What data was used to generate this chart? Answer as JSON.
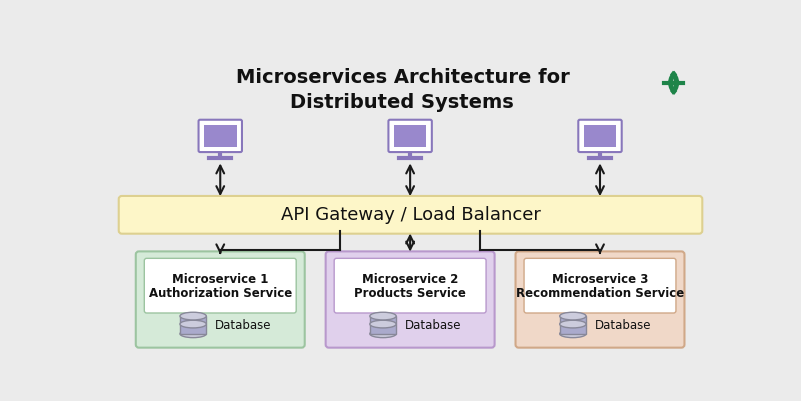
{
  "title_line1": "Microservices Architecture for",
  "title_line2": "Distributed Systems",
  "bg_color": "#ebebeb",
  "gateway_color": "#fdf6c8",
  "gateway_border": "#ddd090",
  "gateway_text": "API Gateway / Load Balancer",
  "microservices": [
    {
      "name": "Microservice 1\nAuthorization Service",
      "box_color": "#d5ead8",
      "border_color": "#9cc4a0",
      "inner_color": "#e8f5ea"
    },
    {
      "name": "Microservice 2\nProducts Service",
      "box_color": "#e0d0ec",
      "border_color": "#b898cc",
      "inner_color": "#ede0f5"
    },
    {
      "name": "Microservice 3\nRecommendation Service",
      "box_color": "#f0d8c8",
      "border_color": "#d0a888",
      "inner_color": "#f8e8d8"
    }
  ],
  "client_color": "#8877bb",
  "client_screen": "#9988cc",
  "arrow_color": "#1a1a1a",
  "text_color": "#111111",
  "db_body": "#888899",
  "db_top": "#aaaacc",
  "db_stripe": "#ccccdd",
  "gg_color": "#1e8449"
}
